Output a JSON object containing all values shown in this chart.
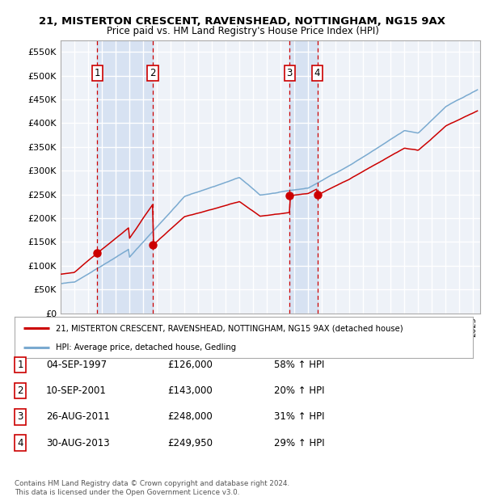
{
  "title": "21, MISTERTON CRESCENT, RAVENSHEAD, NOTTINGHAM, NG15 9AX",
  "subtitle": "Price paid vs. HM Land Registry's House Price Index (HPI)",
  "ylim": [
    0,
    575000
  ],
  "yticks": [
    0,
    50000,
    100000,
    150000,
    200000,
    250000,
    300000,
    350000,
    400000,
    450000,
    500000,
    550000
  ],
  "ytick_labels": [
    "£0",
    "£50K",
    "£100K",
    "£150K",
    "£200K",
    "£250K",
    "£300K",
    "£350K",
    "£400K",
    "£450K",
    "£500K",
    "£550K"
  ],
  "background_color": "#ffffff",
  "plot_bg_color": "#eef2f8",
  "grid_color": "#ffffff",
  "sale_color": "#cc0000",
  "hpi_color": "#7aaad0",
  "transactions": [
    {
      "num": 1,
      "date": "04-SEP-1997",
      "price": 126000,
      "pct": "58% ↑ HPI",
      "x": 1997.67
    },
    {
      "num": 2,
      "date": "10-SEP-2001",
      "price": 143000,
      "pct": "20% ↑ HPI",
      "x": 2001.69
    },
    {
      "num": 3,
      "date": "26-AUG-2011",
      "price": 248000,
      "pct": "31% ↑ HPI",
      "x": 2011.65
    },
    {
      "num": 4,
      "date": "30-AUG-2013",
      "price": 249950,
      "pct": "29% ↑ HPI",
      "x": 2013.66
    }
  ],
  "legend_line1": "21, MISTERTON CRESCENT, RAVENSHEAD, NOTTINGHAM, NG15 9AX (detached house)",
  "legend_line2": "HPI: Average price, detached house, Gedling",
  "footer": "Contains HM Land Registry data © Crown copyright and database right 2024.\nThis data is licensed under the Open Government Licence v3.0.",
  "table_rows": [
    [
      "1",
      "04-SEP-1997",
      "£126,000",
      "58% ↑ HPI"
    ],
    [
      "2",
      "10-SEP-2001",
      "£143,000",
      "20% ↑ HPI"
    ],
    [
      "3",
      "26-AUG-2011",
      "£248,000",
      "31% ↑ HPI"
    ],
    [
      "4",
      "30-AUG-2013",
      "£249,950",
      "29% ↑ HPI"
    ]
  ]
}
